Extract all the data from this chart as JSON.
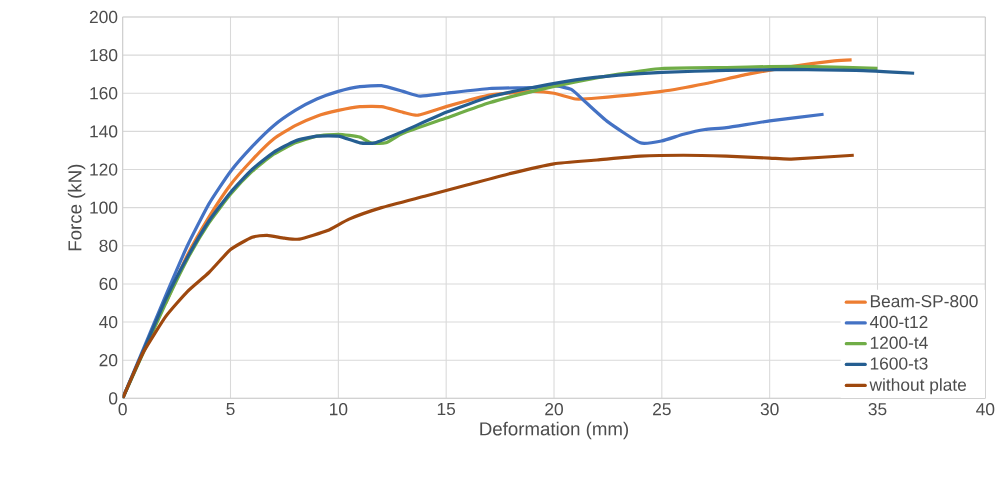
{
  "chart_data": {
    "type": "line",
    "xlabel": "Deformation (mm)",
    "ylabel": "Force (kN)",
    "xlim": [
      0,
      40
    ],
    "ylim": [
      0,
      200
    ],
    "xticks": [
      0,
      5,
      10,
      15,
      20,
      25,
      30,
      35,
      40
    ],
    "yticks": [
      0,
      20,
      40,
      60,
      80,
      100,
      120,
      140,
      160,
      180,
      200
    ],
    "grid": true,
    "legend": "bottom right",
    "marker": "none",
    "line_style": "solid",
    "series": [
      {
        "name": "Beam-SP-800",
        "color": "#ed7d31",
        "x": [
          2,
          3,
          4,
          5,
          6,
          7,
          8,
          9,
          10,
          11,
          12,
          13,
          13.7,
          15,
          17,
          19,
          20,
          21,
          22,
          25,
          27,
          29,
          31,
          33,
          33.8
        ],
        "values": [
          50,
          75,
          95,
          112,
          125,
          136,
          143,
          148,
          151,
          153,
          153,
          150,
          148.5,
          153,
          159,
          161,
          160,
          157,
          157.5,
          161,
          165,
          170,
          174,
          177,
          177.5
        ]
      },
      {
        "name": "400-t12",
        "color": "#4472c4",
        "x": [
          0,
          1,
          2,
          3,
          4,
          5,
          6,
          7,
          8,
          9,
          10,
          11,
          12,
          13,
          13.8,
          15,
          17,
          19,
          20,
          20.8,
          21.5,
          22.5,
          24,
          25,
          26,
          27,
          28,
          30,
          32.5
        ],
        "values": [
          0,
          27,
          54,
          80,
          102,
          119,
          132,
          143,
          151,
          157,
          161,
          163.5,
          164,
          161,
          158.5,
          160,
          162.5,
          163,
          164,
          162,
          155,
          145,
          134,
          135,
          138.5,
          141,
          142,
          145.5,
          149
        ]
      },
      {
        "name": "1200-t4",
        "color": "#70ad47",
        "x": [
          0,
          1,
          2,
          3,
          4,
          5,
          6,
          7,
          8,
          9,
          10,
          11,
          11.5,
          12.2,
          13,
          15,
          17,
          19,
          21,
          23,
          25,
          28,
          30,
          32,
          35
        ],
        "values": [
          0,
          25,
          50,
          73,
          92,
          107,
          119,
          128,
          134,
          137.5,
          138.5,
          137,
          134,
          134,
          139,
          147,
          155,
          161,
          166,
          170,
          173,
          173.5,
          174,
          174,
          173
        ]
      },
      {
        "name": "1600-t3",
        "color": "#255e91",
        "x": [
          0,
          1,
          2,
          3,
          4,
          5,
          6,
          7,
          8,
          9,
          10,
          11,
          11.7,
          13,
          15,
          17,
          19,
          21,
          23,
          25,
          28,
          31,
          34,
          36.7
        ],
        "values": [
          0,
          26,
          52,
          74,
          93,
          108,
          120,
          129,
          135,
          137.5,
          137.5,
          134,
          134,
          140,
          150,
          158,
          163,
          167,
          169.5,
          171,
          172,
          172.5,
          172,
          170.5
        ]
      },
      {
        "name": "without plate",
        "color": "#9e480e",
        "x": [
          0,
          0.5,
          1,
          2,
          3,
          4,
          5,
          6,
          6.7,
          7.5,
          8.2,
          9.5,
          10.5,
          12,
          14,
          16,
          18,
          20,
          22,
          24,
          26,
          28,
          30,
          31,
          33.9
        ],
        "values": [
          0,
          13,
          25,
          43,
          56,
          66,
          78,
          84.5,
          85.5,
          84,
          83.5,
          88,
          94,
          100,
          106,
          112,
          118,
          123,
          125,
          127,
          127.5,
          127,
          126,
          125.5,
          127.5
        ]
      }
    ]
  }
}
